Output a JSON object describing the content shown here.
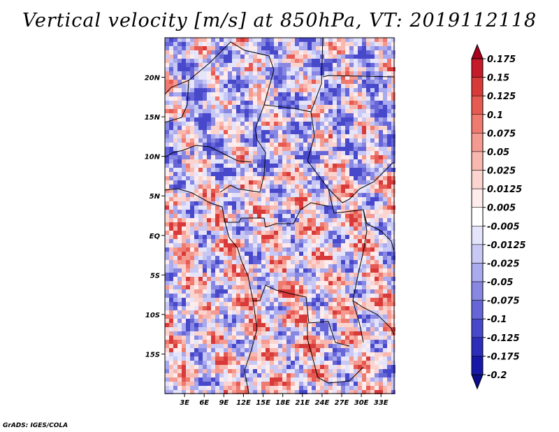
{
  "title": "Vertical velocity [m/s] at 850hPa, VT: 2019112118",
  "credit": "GrADS: IGES/COLA",
  "map": {
    "lon_range": [
      0,
      35
    ],
    "lat_range": [
      -20,
      25
    ],
    "lon_ticks": [
      "3E",
      "6E",
      "9E",
      "12E",
      "15E",
      "18E",
      "21E",
      "24E",
      "27E",
      "30E",
      "33E"
    ],
    "lon_tick_values": [
      3,
      6,
      9,
      12,
      15,
      18,
      21,
      24,
      27,
      30,
      33
    ],
    "lat_ticks": [
      "20N",
      "15N",
      "10N",
      "5N",
      "EQ",
      "5S",
      "10S",
      "15S"
    ],
    "lat_tick_values": [
      20,
      15,
      10,
      5,
      0,
      -5,
      -10,
      -15
    ]
  },
  "colorbar": {
    "levels": [
      "0.175",
      "0.15",
      "0.125",
      "0.1",
      "0.075",
      "0.05",
      "0.025",
      "0.0125",
      "0.005",
      "-0.005",
      "-0.0125",
      "-0.025",
      "-0.05",
      "-0.075",
      "-0.1",
      "-0.125",
      "-0.175",
      "-0.2"
    ],
    "colors": [
      "#a8001c",
      "#c41a2a",
      "#d83a3a",
      "#e65a52",
      "#ee7a70",
      "#f59a90",
      "#f8b8b0",
      "#fbd4cf",
      "#fdeceb",
      "#ffffff",
      "#e4e4fb",
      "#c8c8f5",
      "#aaaaee",
      "#8888e3",
      "#6666d8",
      "#4848cb",
      "#2d2dbb",
      "#1818a8",
      "#0c0c8a"
    ]
  }
}
